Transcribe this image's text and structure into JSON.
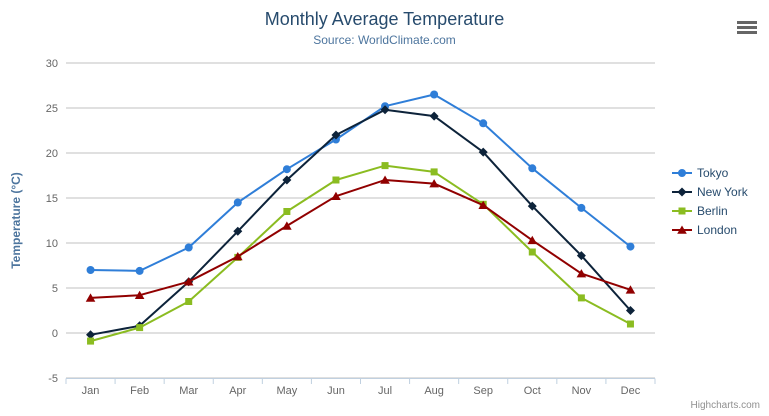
{
  "header": {
    "title": "Monthly Average Temperature",
    "subtitle": "Source: WorldClimate.com"
  },
  "credits": "Highcharts.com",
  "context_menu_icon": "hamburger-icon",
  "chart_data": {
    "type": "line",
    "title": "Monthly Average Temperature",
    "subtitle": "Source: WorldClimate.com",
    "categories": [
      "Jan",
      "Feb",
      "Mar",
      "Apr",
      "May",
      "Jun",
      "Jul",
      "Aug",
      "Sep",
      "Oct",
      "Nov",
      "Dec"
    ],
    "series": [
      {
        "name": "Tokyo",
        "color": "#2f7ed8",
        "marker": "circle",
        "values": [
          7.0,
          6.9,
          9.5,
          14.5,
          18.2,
          21.5,
          25.2,
          26.5,
          23.3,
          18.3,
          13.9,
          9.6
        ]
      },
      {
        "name": "New York",
        "color": "#0d233a",
        "marker": "diamond",
        "values": [
          -0.2,
          0.8,
          5.7,
          11.3,
          17.0,
          22.0,
          24.8,
          24.1,
          20.1,
          14.1,
          8.6,
          2.5
        ]
      },
      {
        "name": "Berlin",
        "color": "#8bbc21",
        "marker": "square",
        "values": [
          -0.9,
          0.6,
          3.5,
          8.4,
          13.5,
          17.0,
          18.6,
          17.9,
          14.3,
          9.0,
          3.9,
          1.0
        ]
      },
      {
        "name": "London",
        "color": "#910000",
        "marker": "triangle",
        "values": [
          3.9,
          4.2,
          5.7,
          8.5,
          11.9,
          15.2,
          17.0,
          16.6,
          14.2,
          10.3,
          6.6,
          4.8
        ]
      }
    ],
    "xlabel": "",
    "ylabel": "Temperature (°C)",
    "ylim": [
      -5,
      30
    ],
    "ytick_interval": 5,
    "grid": true,
    "legend_position": "right",
    "colors": {
      "gridline": "#c0c0c0",
      "axis_line": "#c0d0e0",
      "axis_label": "#666666",
      "axis_title": "#4d759e",
      "title": "#274b6d",
      "subtitle": "#4d759e",
      "legend_text": "#274b6d",
      "credits_text": "#909090"
    }
  }
}
